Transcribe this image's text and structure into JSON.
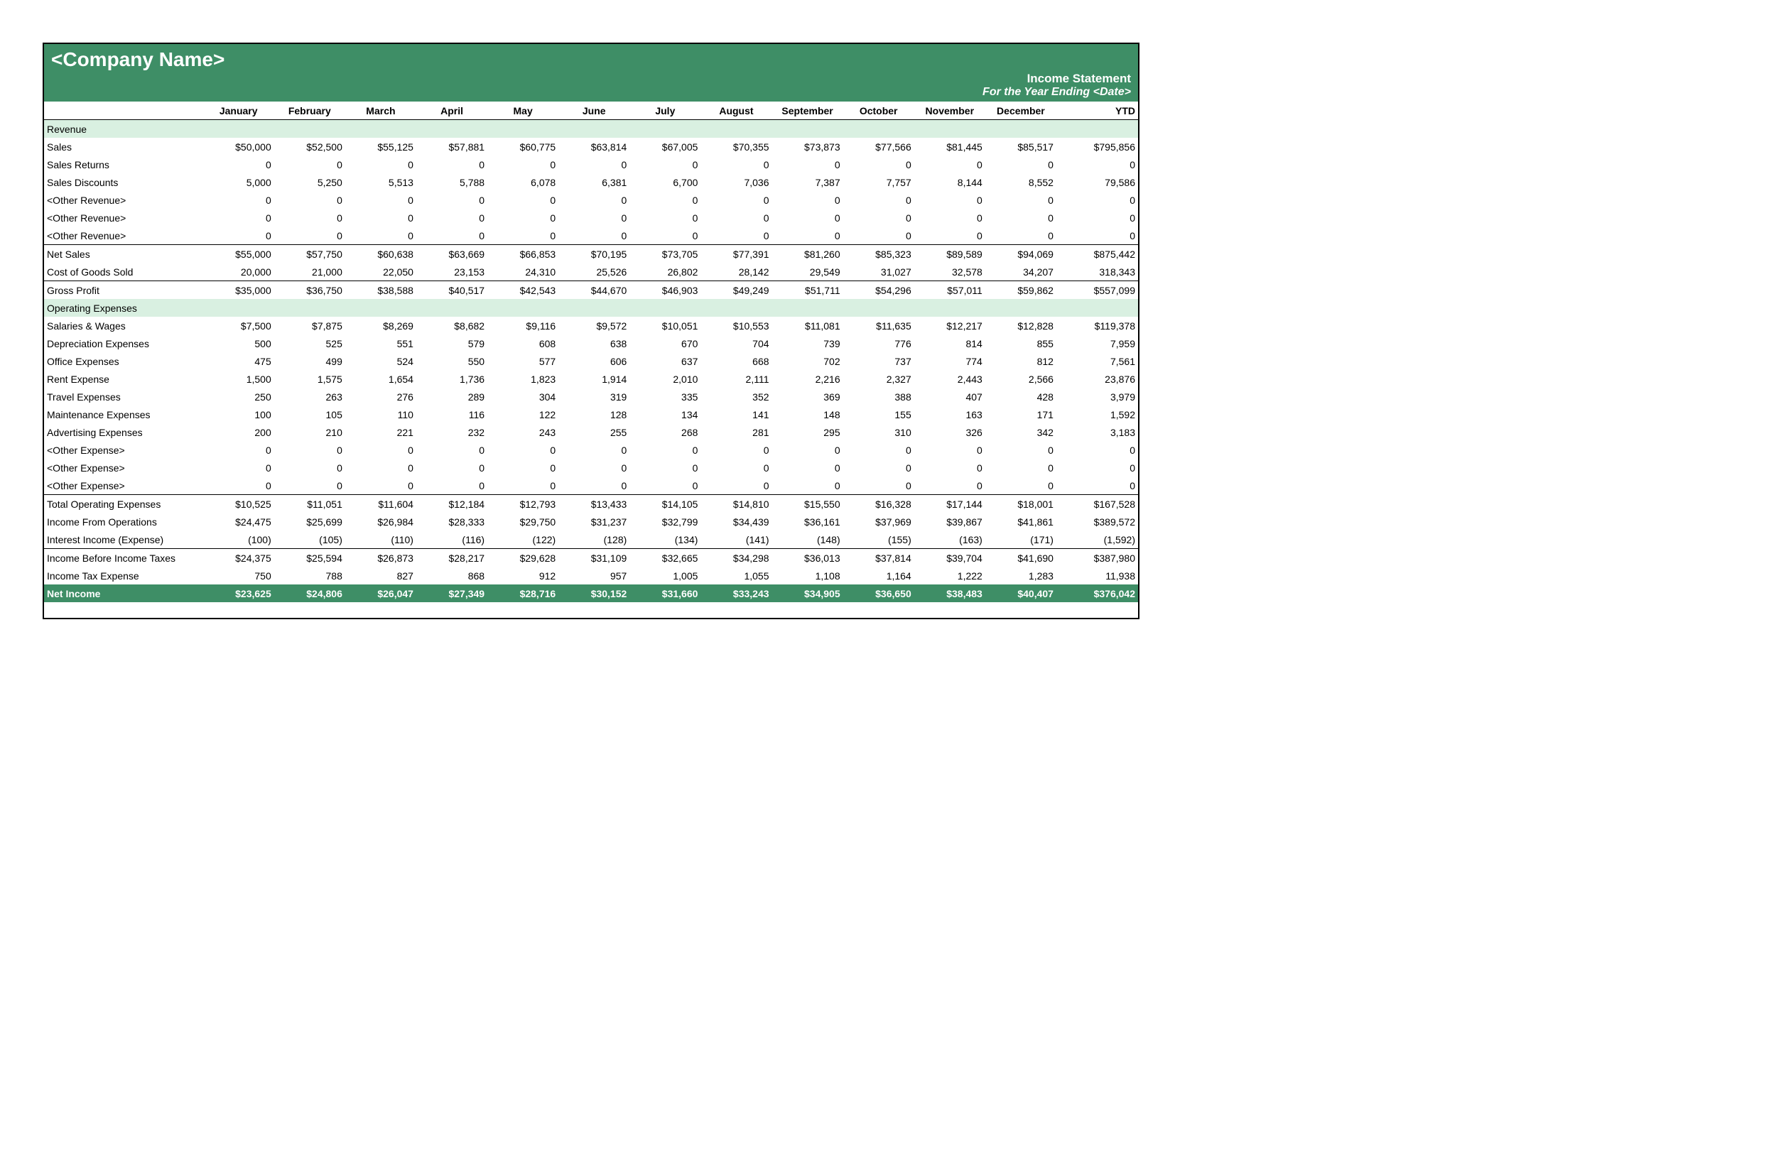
{
  "header": {
    "company": "<Company Name>",
    "title": "Income Statement",
    "subtitle": "For the Year Ending <Date>",
    "bg_color": "#3e8e66",
    "text_color": "#ffffff"
  },
  "section_bg": "#d9f0e1",
  "columns": [
    "January",
    "February",
    "March",
    "April",
    "May",
    "June",
    "July",
    "August",
    "September",
    "October",
    "November",
    "December",
    "YTD"
  ],
  "sections": [
    {
      "type": "section",
      "label": "Revenue"
    },
    {
      "type": "row",
      "label": "Sales",
      "values": [
        "$50,000",
        "$52,500",
        "$55,125",
        "$57,881",
        "$60,775",
        "$63,814",
        "$67,005",
        "$70,355",
        "$73,873",
        "$77,566",
        "$81,445",
        "$85,517",
        "$795,856"
      ]
    },
    {
      "type": "row",
      "label": "Sales Returns",
      "values": [
        "0",
        "0",
        "0",
        "0",
        "0",
        "0",
        "0",
        "0",
        "0",
        "0",
        "0",
        "0",
        "0"
      ]
    },
    {
      "type": "row",
      "label": "Sales Discounts",
      "values": [
        "5,000",
        "5,250",
        "5,513",
        "5,788",
        "6,078",
        "6,381",
        "6,700",
        "7,036",
        "7,387",
        "7,757",
        "8,144",
        "8,552",
        "79,586"
      ]
    },
    {
      "type": "row",
      "label": "<Other Revenue>",
      "values": [
        "0",
        "0",
        "0",
        "0",
        "0",
        "0",
        "0",
        "0",
        "0",
        "0",
        "0",
        "0",
        "0"
      ]
    },
    {
      "type": "row",
      "label": "<Other Revenue>",
      "values": [
        "0",
        "0",
        "0",
        "0",
        "0",
        "0",
        "0",
        "0",
        "0",
        "0",
        "0",
        "0",
        "0"
      ]
    },
    {
      "type": "row",
      "label": "<Other Revenue>",
      "values": [
        "0",
        "0",
        "0",
        "0",
        "0",
        "0",
        "0",
        "0",
        "0",
        "0",
        "0",
        "0",
        "0"
      ],
      "underline": true
    },
    {
      "type": "subtotal",
      "label": "Net Sales",
      "values": [
        "$55,000",
        "$57,750",
        "$60,638",
        "$63,669",
        "$66,853",
        "$70,195",
        "$73,705",
        "$77,391",
        "$81,260",
        "$85,323",
        "$89,589",
        "$94,069",
        "$875,442"
      ]
    },
    {
      "type": "row",
      "label": "Cost of Goods Sold",
      "values": [
        "20,000",
        "21,000",
        "22,050",
        "23,153",
        "24,310",
        "25,526",
        "26,802",
        "28,142",
        "29,549",
        "31,027",
        "32,578",
        "34,207",
        "318,343"
      ],
      "underline": true
    },
    {
      "type": "subtotal",
      "label": "Gross Profit",
      "values": [
        "$35,000",
        "$36,750",
        "$38,588",
        "$40,517",
        "$42,543",
        "$44,670",
        "$46,903",
        "$49,249",
        "$51,711",
        "$54,296",
        "$57,011",
        "$59,862",
        "$557,099"
      ]
    },
    {
      "type": "section",
      "label": "Operating Expenses"
    },
    {
      "type": "row",
      "label": "Salaries & Wages",
      "values": [
        "$7,500",
        "$7,875",
        "$8,269",
        "$8,682",
        "$9,116",
        "$9,572",
        "$10,051",
        "$10,553",
        "$11,081",
        "$11,635",
        "$12,217",
        "$12,828",
        "$119,378"
      ]
    },
    {
      "type": "row",
      "label": "Depreciation Expenses",
      "values": [
        "500",
        "525",
        "551",
        "579",
        "608",
        "638",
        "670",
        "704",
        "739",
        "776",
        "814",
        "855",
        "7,959"
      ]
    },
    {
      "type": "row",
      "label": "Office Expenses",
      "values": [
        "475",
        "499",
        "524",
        "550",
        "577",
        "606",
        "637",
        "668",
        "702",
        "737",
        "774",
        "812",
        "7,561"
      ]
    },
    {
      "type": "row",
      "label": "Rent Expense",
      "values": [
        "1,500",
        "1,575",
        "1,654",
        "1,736",
        "1,823",
        "1,914",
        "2,010",
        "2,111",
        "2,216",
        "2,327",
        "2,443",
        "2,566",
        "23,876"
      ]
    },
    {
      "type": "row",
      "label": "Travel Expenses",
      "values": [
        "250",
        "263",
        "276",
        "289",
        "304",
        "319",
        "335",
        "352",
        "369",
        "388",
        "407",
        "428",
        "3,979"
      ]
    },
    {
      "type": "row",
      "label": "Maintenance Expenses",
      "values": [
        "100",
        "105",
        "110",
        "116",
        "122",
        "128",
        "134",
        "141",
        "148",
        "155",
        "163",
        "171",
        "1,592"
      ]
    },
    {
      "type": "row",
      "label": "Advertising Expenses",
      "values": [
        "200",
        "210",
        "221",
        "232",
        "243",
        "255",
        "268",
        "281",
        "295",
        "310",
        "326",
        "342",
        "3,183"
      ]
    },
    {
      "type": "row",
      "label": "<Other Expense>",
      "values": [
        "0",
        "0",
        "0",
        "0",
        "0",
        "0",
        "0",
        "0",
        "0",
        "0",
        "0",
        "0",
        "0"
      ]
    },
    {
      "type": "row",
      "label": "<Other Expense>",
      "values": [
        "0",
        "0",
        "0",
        "0",
        "0",
        "0",
        "0",
        "0",
        "0",
        "0",
        "0",
        "0",
        "0"
      ]
    },
    {
      "type": "row",
      "label": "<Other Expense>",
      "values": [
        "0",
        "0",
        "0",
        "0",
        "0",
        "0",
        "0",
        "0",
        "0",
        "0",
        "0",
        "0",
        "0"
      ],
      "underline": true
    },
    {
      "type": "subtotal",
      "label": "Total Operating Expenses",
      "values": [
        "$10,525",
        "$11,051",
        "$11,604",
        "$12,184",
        "$12,793",
        "$13,433",
        "$14,105",
        "$14,810",
        "$15,550",
        "$16,328",
        "$17,144",
        "$18,001",
        "$167,528"
      ]
    },
    {
      "type": "row",
      "label": "Income From Operations",
      "values": [
        "$24,475",
        "$25,699",
        "$26,984",
        "$28,333",
        "$29,750",
        "$31,237",
        "$32,799",
        "$34,439",
        "$36,161",
        "$37,969",
        "$39,867",
        "$41,861",
        "$389,572"
      ]
    },
    {
      "type": "row",
      "label": "Interest Income (Expense)",
      "values": [
        "(100)",
        "(105)",
        "(110)",
        "(116)",
        "(122)",
        "(128)",
        "(134)",
        "(141)",
        "(148)",
        "(155)",
        "(163)",
        "(171)",
        "(1,592)"
      ],
      "underline": true
    },
    {
      "type": "subtotal",
      "label": "Income Before Income Taxes",
      "values": [
        "$24,375",
        "$25,594",
        "$26,873",
        "$28,217",
        "$29,628",
        "$31,109",
        "$32,665",
        "$34,298",
        "$36,013",
        "$37,814",
        "$39,704",
        "$41,690",
        "$387,980"
      ]
    },
    {
      "type": "row",
      "label": "Income Tax Expense",
      "values": [
        "750",
        "788",
        "827",
        "868",
        "912",
        "957",
        "1,005",
        "1,055",
        "1,108",
        "1,164",
        "1,222",
        "1,283",
        "11,938"
      ]
    },
    {
      "type": "net",
      "label": "Net Income",
      "values": [
        "$23,625",
        "$24,806",
        "$26,047",
        "$27,349",
        "$28,716",
        "$30,152",
        "$31,660",
        "$33,243",
        "$34,905",
        "$36,650",
        "$38,483",
        "$40,407",
        "$376,042"
      ]
    }
  ]
}
